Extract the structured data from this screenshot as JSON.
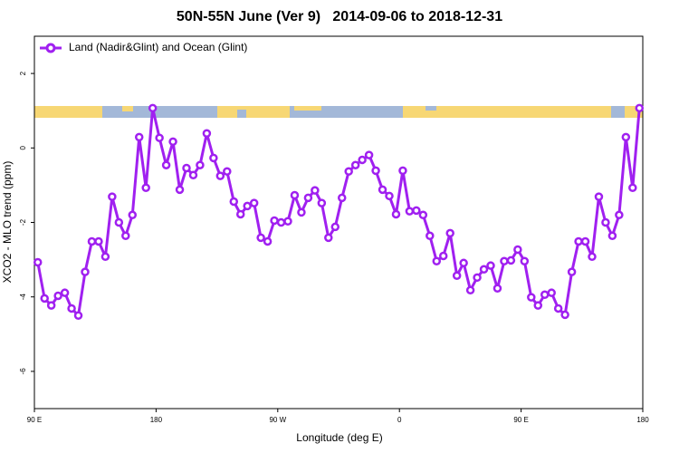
{
  "chart_data": {
    "type": "line",
    "title": "50N-55N June (Ver 9)   2014-09-06 to 2018-12-31",
    "xlabel": "Longitude (deg E)",
    "ylabel": "XCO2 - MLO trend (ppm)",
    "x": [
      92.5,
      97.5,
      102.5,
      107.5,
      112.5,
      117.5,
      122.5,
      127.5,
      132.5,
      137.5,
      142.5,
      147.5,
      152.5,
      157.5,
      162.5,
      167.5,
      172.5,
      177.5,
      182.5,
      187.5,
      192.5,
      197.5,
      202.5,
      207.5,
      212.5,
      217.5,
      222.5,
      227.5,
      232.5,
      237.5,
      242.5,
      247.5,
      252.5,
      257.5,
      262.5,
      267.5,
      272.5,
      277.5,
      282.5,
      287.5,
      292.5,
      297.5,
      302.5,
      307.5,
      312.5,
      317.5,
      322.5,
      327.5,
      332.5,
      337.5,
      342.5,
      347.5,
      352.5,
      357.5,
      362.5,
      367.5,
      372.5,
      377.5,
      382.5,
      387.5,
      392.5,
      397.5,
      402.5,
      407.5,
      412.5,
      417.5,
      422.5,
      427.5,
      432.5,
      437.5,
      442.5,
      447.5,
      452.5,
      457.5,
      462.5,
      467.5,
      472.5,
      477.5,
      482.5,
      487.5,
      492.5,
      497.5,
      502.5,
      507.5,
      512.5,
      517.5,
      522.5,
      527.5,
      532.5,
      537.5
    ],
    "series": [
      {
        "name": "Land (Nadir&Glint) and Ocean (Glint)",
        "color": "#a020f0",
        "values": [
          -3.07,
          -4.04,
          -4.23,
          -3.97,
          -3.89,
          -4.31,
          -4.5,
          -3.33,
          -2.51,
          -2.51,
          -2.92,
          -1.31,
          -2.0,
          -2.36,
          -1.8,
          0.29,
          -1.07,
          1.07,
          0.27,
          -0.46,
          0.17,
          -1.12,
          -0.54,
          -0.73,
          -0.46,
          0.39,
          -0.27,
          -0.75,
          -0.63,
          -1.44,
          -1.78,
          -1.56,
          -1.48,
          -2.41,
          -2.51,
          -1.95,
          -2.0,
          -1.97,
          -1.27,
          -1.73,
          -1.34,
          -1.14,
          -1.48,
          -2.41,
          -2.12,
          -1.34,
          -0.63,
          -0.46,
          -0.32,
          -0.19,
          -0.61,
          -1.12,
          -1.29,
          -1.78,
          -0.61,
          -1.7,
          -1.68,
          -1.8,
          -2.36,
          -3.04,
          -2.9,
          -2.29,
          -3.43,
          -3.09,
          -3.82,
          -3.48,
          -3.26,
          -3.16,
          -3.77,
          -3.04,
          -3.02,
          -2.73,
          -3.04,
          -4.01,
          -4.23,
          -3.94,
          -3.89,
          -4.31,
          -4.48,
          -3.33,
          -2.51,
          -2.51,
          -2.92,
          -1.31,
          -2.0,
          -2.36,
          -1.8,
          0.29,
          -1.07,
          1.07
        ]
      }
    ],
    "xlim": [
      90,
      540
    ],
    "xticks": [
      {
        "value": 90,
        "label": "90 E"
      },
      180,
      {
        "value": 270,
        "label": "90 W"
      },
      {
        "value": 360,
        "label": "0"
      },
      {
        "value": 450,
        "label": "90 E"
      },
      {
        "value": 540,
        "label": "180"
      }
    ],
    "ylim": [
      -7,
      3
    ],
    "yticks": [
      -6,
      -4,
      -2,
      0,
      2
    ],
    "grid": false,
    "legend": "top-left"
  }
}
